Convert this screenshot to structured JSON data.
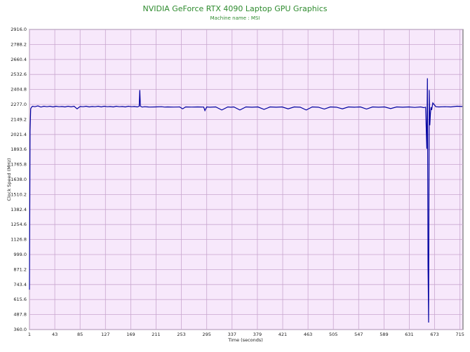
{
  "chart_data": {
    "type": "line",
    "title": "NVIDIA GeForce RTX 4090 Laptop GPU Graphics",
    "subtitle": "Machine name : MSI",
    "x_label": "Time (seconds)",
    "y_label": "Clock Speed (MHz)",
    "xlim": [
      1,
      720
    ],
    "xticks": [
      1,
      43,
      85,
      127,
      169,
      211,
      253,
      295,
      337,
      379,
      421,
      463,
      505,
      547,
      589,
      631,
      673,
      715
    ],
    "ylim": [
      360,
      2916
    ],
    "yticks": [
      {
        "value": 360,
        "label": "360.0"
      },
      487.8,
      615.6,
      743.4,
      871.2,
      {
        "value": 999,
        "label": "999.0"
      },
      1126.8,
      1254.6,
      1382.4,
      1510.2,
      {
        "value": 1638,
        "label": "1638.0"
      },
      1765.8,
      1893.6,
      2021.4,
      2149.2,
      {
        "value": 2277,
        "label": "2277.0"
      },
      2404.8,
      2532.6,
      2660.4,
      2788.2,
      {
        "value": 2916,
        "label": "2916.0"
      }
    ],
    "grid": true,
    "series": [
      {
        "color": "#0000a0",
        "x": [
          1,
          2,
          3,
          4,
          6,
          10,
          15,
          20,
          25,
          30,
          35,
          40,
          45,
          50,
          55,
          60,
          65,
          70,
          75,
          80,
          85,
          90,
          95,
          100,
          105,
          110,
          115,
          120,
          125,
          130,
          135,
          140,
          145,
          150,
          155,
          160,
          165,
          170,
          175,
          180,
          183,
          184,
          185,
          188,
          192,
          197,
          200,
          210,
          220,
          225,
          230,
          240,
          250,
          255,
          260,
          270,
          280,
          290,
          292,
          295,
          300,
          310,
          320,
          330,
          335,
          340,
          350,
          360,
          370,
          380,
          390,
          400,
          410,
          420,
          430,
          440,
          450,
          460,
          470,
          480,
          490,
          500,
          510,
          520,
          530,
          540,
          550,
          560,
          570,
          580,
          590,
          600,
          610,
          620,
          630,
          640,
          650,
          655,
          658,
          660,
          661,
          662,
          663,
          664,
          665,
          666,
          667,
          668,
          670,
          675,
          680,
          690,
          700,
          710,
          719
        ],
        "values": [
          700,
          2050,
          2240,
          2250,
          2262,
          2258,
          2265,
          2255,
          2262,
          2258,
          2262,
          2256,
          2262,
          2258,
          2260,
          2256,
          2262,
          2257,
          2262,
          2240,
          2260,
          2258,
          2262,
          2256,
          2260,
          2258,
          2262,
          2256,
          2262,
          2258,
          2260,
          2256,
          2262,
          2258,
          2260,
          2256,
          2262,
          2258,
          2260,
          2256,
          2262,
          2400,
          2262,
          2255,
          2258,
          2256,
          2255,
          2256,
          2258,
          2255,
          2256,
          2255,
          2256,
          2240,
          2256,
          2255,
          2256,
          2255,
          2225,
          2256,
          2254,
          2256,
          2230,
          2256,
          2254,
          2256,
          2230,
          2256,
          2254,
          2256,
          2235,
          2256,
          2254,
          2256,
          2240,
          2256,
          2254,
          2230,
          2256,
          2254,
          2238,
          2256,
          2254,
          2240,
          2256,
          2254,
          2256,
          2238,
          2256,
          2254,
          2256,
          2242,
          2256,
          2254,
          2256,
          2252,
          2256,
          2250,
          2254,
          1900,
          2500,
          900,
          420,
          2400,
          2100,
          2200,
          2254,
          2230,
          2290,
          2258,
          2256,
          2258,
          2256,
          2262,
          2260
        ]
      }
    ]
  }
}
